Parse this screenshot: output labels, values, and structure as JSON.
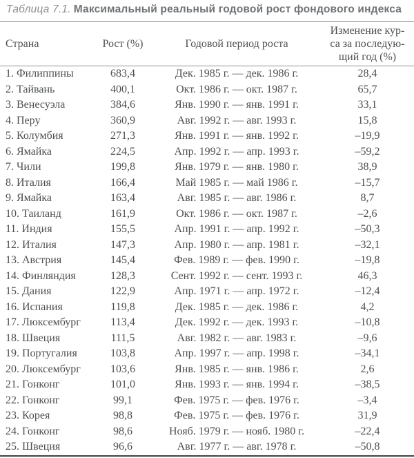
{
  "title": {
    "label": "Таблица 7.1.",
    "text": "Максимальный реальный годовой рост фондового индекса"
  },
  "colors": {
    "title_label": "#8b8e90",
    "title_text": "#6f7275",
    "body_text": "#4d4f51",
    "rule": "#8f8f8f",
    "bottom_rule": "#414141"
  },
  "table": {
    "headers": {
      "country": "Страна",
      "growth": "Рост (%)",
      "period": "Годовой период роста",
      "change_lines": [
        "Изменение кур-",
        "са за последую-",
        "щий год (%)"
      ]
    },
    "rows": [
      {
        "country": "1. Филиппины",
        "growth": "683,4",
        "period": "Дек. 1985 г. — дек. 1986 г.",
        "change": "28,4"
      },
      {
        "country": "2. Тайвань",
        "growth": "400,1",
        "period": "Окт. 1986 г. — окт. 1987 г.",
        "change": "65,7"
      },
      {
        "country": "3. Венесуэла",
        "growth": "384,6",
        "period": "Янв. 1990 г. — янв. 1991 г.",
        "change": "33,1"
      },
      {
        "country": "4. Перу",
        "growth": "360,9",
        "period": "Авг. 1992 г. — авг. 1993 г.",
        "change": "15,8"
      },
      {
        "country": "5. Колумбия",
        "growth": "271,3",
        "period": "Янв. 1991 г. — янв. 1992 г.",
        "change": "–19,9"
      },
      {
        "country": "6. Ямайка",
        "growth": "224,5",
        "period": "Апр. 1992 г. — апр. 1993 г.",
        "change": "–59,2"
      },
      {
        "country": "7. Чили",
        "growth": "199,8",
        "period": "Янв. 1979 г. — янв. 1980 г.",
        "change": "38,9"
      },
      {
        "country": "8. Италия",
        "growth": "166,4",
        "period": "Май 1985 г. — май 1986 г.",
        "change": "–15,7"
      },
      {
        "country": "9. Ямайка",
        "growth": "163,4",
        "period": "Авг. 1985 г. — авг. 1986 г.",
        "change": "8,7"
      },
      {
        "country": "10. Таиланд",
        "growth": "161,9",
        "period": "Окт. 1986 г. — окт. 1987 г.",
        "change": "–2,6"
      },
      {
        "country": "11. Индия",
        "growth": "155,5",
        "period": "Апр. 1991 г. — апр. 1992 г.",
        "change": "–50,3"
      },
      {
        "country": "12. Италия",
        "growth": "147,3",
        "period": "Апр. 1980 г. — апр. 1981 г.",
        "change": "–32,1"
      },
      {
        "country": "13. Австрия",
        "growth": "145,4",
        "period": "Фев. 1989 г. — фев. 1990 г.",
        "change": "–19,8"
      },
      {
        "country": "14. Финляндия",
        "growth": "128,3",
        "period": "Сент. 1992 г. — сент. 1993 г.",
        "change": "46,3"
      },
      {
        "country": "15. Дания",
        "growth": "122,9",
        "period": "Апр. 1971 г. — апр. 1972 г.",
        "change": "–12,4"
      },
      {
        "country": "16. Испания",
        "growth": "119,8",
        "period": "Дек. 1985 г. — дек. 1986 г.",
        "change": "4,2"
      },
      {
        "country": "17. Люксембург",
        "growth": "113,4",
        "period": "Дек. 1992 г. — дек. 1993 г.",
        "change": "–10,8"
      },
      {
        "country": "18. Швеция",
        "growth": "111,5",
        "period": "Авг. 1982 г. — авг. 1983 г.",
        "change": "–9,6"
      },
      {
        "country": "19. Португалия",
        "growth": "103,8",
        "period": "Апр. 1997 г. — апр. 1998 г.",
        "change": "–34,1"
      },
      {
        "country": "20. Люксембург",
        "growth": "103,6",
        "period": "Янв. 1985 г. — янв. 1986 г.",
        "change": "2,6"
      },
      {
        "country": "21. Гонконг",
        "growth": "101,0",
        "period": "Янв. 1993 г. — янв. 1994 г.",
        "change": "–38,5"
      },
      {
        "country": "22. Гонконг",
        "growth": "99,1",
        "period": "Фев. 1975 г. — фев. 1976 г.",
        "change": "–3,4"
      },
      {
        "country": "23. Корея",
        "growth": "98,8",
        "period": "Фев. 1975 г. — фев. 1976 г.",
        "change": "31,9"
      },
      {
        "country": "24. Гонконг",
        "growth": "98,6",
        "period": "Нояб. 1979 г. — нояб. 1980 г.",
        "change": "–22,4"
      },
      {
        "country": "25. Швеция",
        "growth": "96,6",
        "period": "Авг. 1977 г. — авг. 1978 г.",
        "change": "–50,8"
      }
    ]
  }
}
